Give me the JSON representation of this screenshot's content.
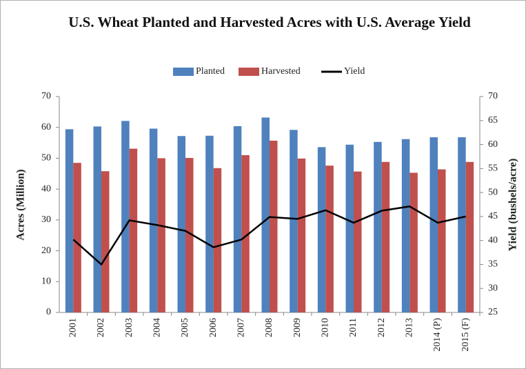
{
  "chart_data": {
    "type": "bar",
    "title": "U.S. Wheat Planted and Harvested Acres with U.S. Average Yield",
    "y_label": "Acres (Million)",
    "y2_label": "Yield (bushels/acre)",
    "categories": [
      "2001",
      "2002",
      "2003",
      "2004",
      "2005",
      "2006",
      "2007",
      "2008",
      "2009",
      "2010",
      "2011",
      "2012",
      "2013",
      "2014 (P)",
      "2015 (F)"
    ],
    "series": [
      {
        "name": "Planted",
        "type": "bar",
        "color": "#4f81bd",
        "values": [
          59.4,
          60.3,
          62.1,
          59.6,
          57.2,
          57.3,
          60.4,
          63.2,
          59.2,
          53.6,
          54.4,
          55.3,
          56.2,
          56.8,
          56.8
        ]
      },
      {
        "name": "Harvested",
        "type": "bar",
        "color": "#c0504d",
        "values": [
          48.5,
          45.8,
          53.1,
          50.0,
          50.1,
          46.8,
          51.0,
          55.7,
          49.9,
          47.6,
          45.7,
          48.8,
          45.3,
          46.4,
          48.8
        ]
      },
      {
        "name": "Yield",
        "type": "line",
        "axis": "y2",
        "color": "#000000",
        "values": [
          40.2,
          35.0,
          44.2,
          43.2,
          42.0,
          38.6,
          40.2,
          44.9,
          44.5,
          46.3,
          43.7,
          46.2,
          47.1,
          43.7,
          45.0
        ]
      }
    ],
    "ylim": [
      0,
      70
    ],
    "yticks": [
      0,
      10,
      20,
      30,
      40,
      50,
      60,
      70
    ],
    "y2lim": [
      25,
      70
    ],
    "y2ticks": [
      25,
      30,
      35,
      40,
      45,
      50,
      55,
      60,
      65,
      70
    ],
    "legend": "top",
    "grid": false
  }
}
